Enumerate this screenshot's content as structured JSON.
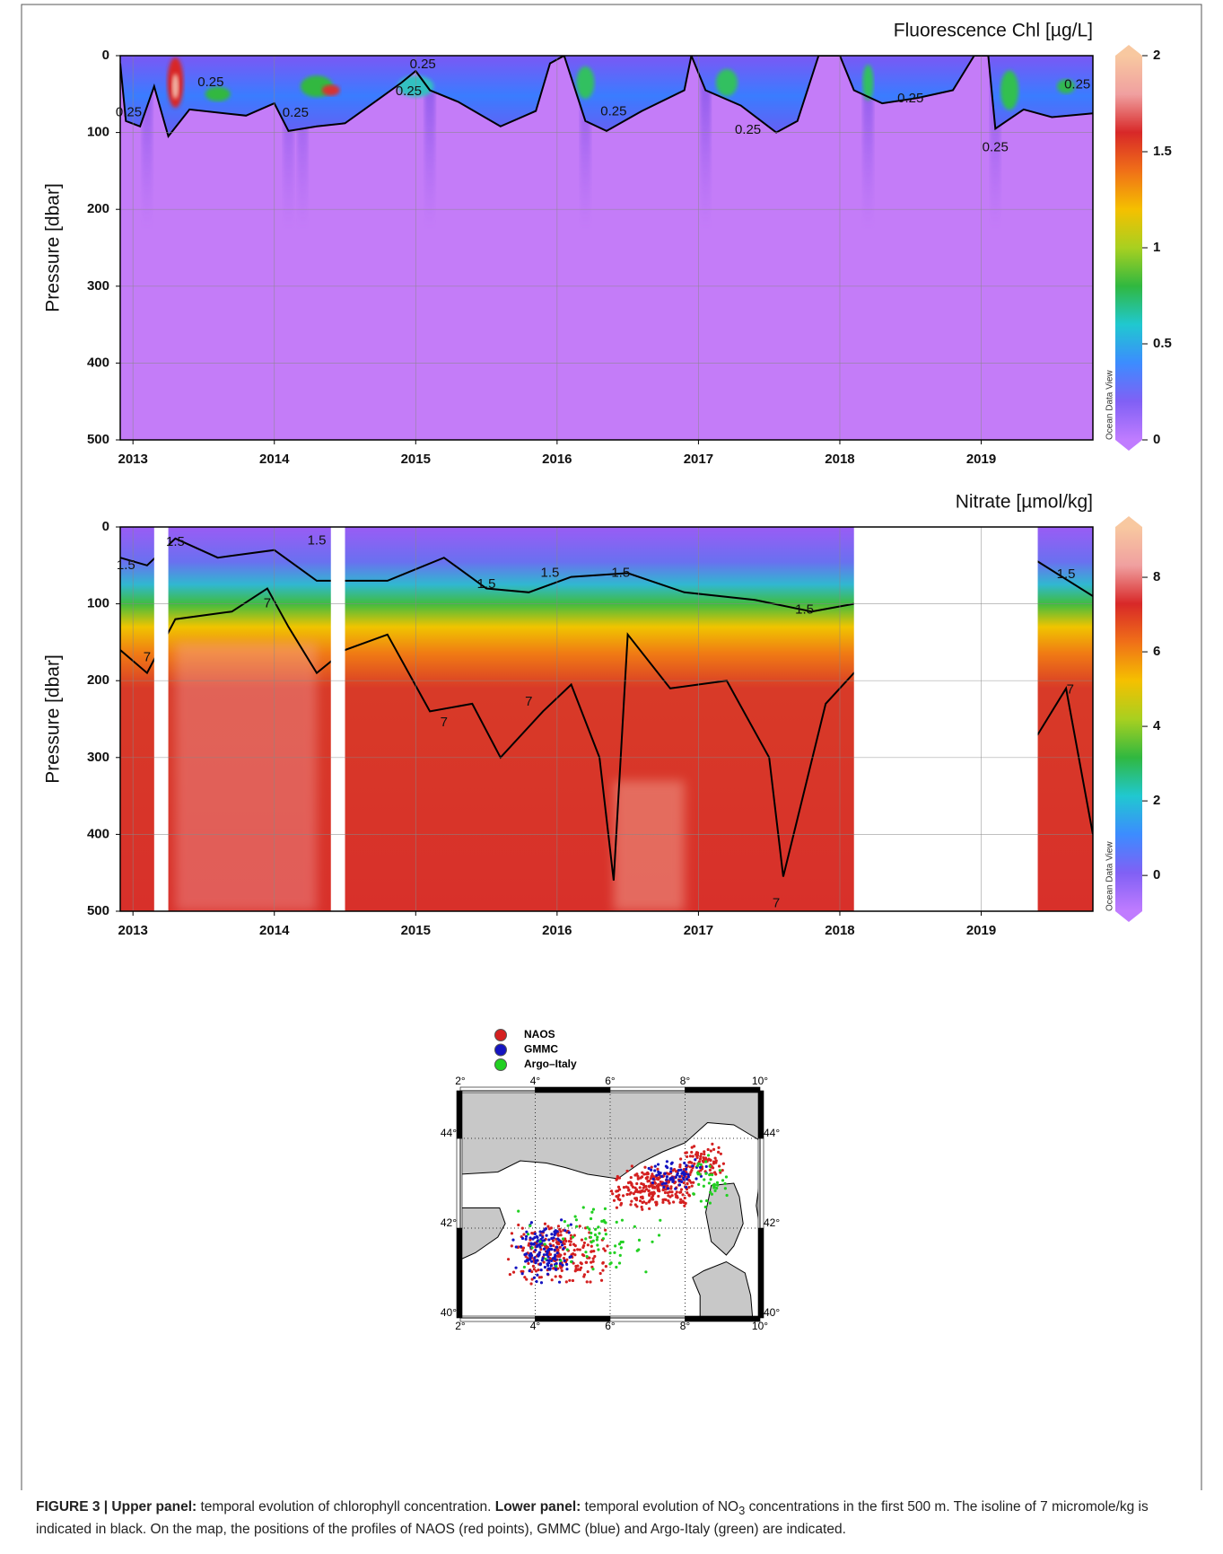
{
  "panels": [
    {
      "title": "Fluorescence Chl [µg/L]",
      "ylabel": "Pressure [dbar]",
      "xlim": [
        2012.91,
        2019.79
      ],
      "xticks": [
        2013,
        2014,
        2015,
        2016,
        2017,
        2018,
        2019
      ],
      "ylim": [
        0,
        500
      ],
      "yticks": [
        0,
        100,
        200,
        300,
        400,
        500
      ],
      "grid": true,
      "colorbar": {
        "lim": [
          0,
          2
        ],
        "ticks": [
          0,
          0.5,
          1,
          1.5,
          2
        ],
        "colors": [
          "#c07cff",
          "#8060f5",
          "#3c8cff",
          "#20c8d0",
          "#30b840",
          "#a8d020",
          "#f5c000",
          "#f07018",
          "#d82828",
          "#f0a0a0",
          "#f8c8a0"
        ]
      },
      "credit": "Ocean Data View",
      "contour_labels": [
        {
          "x": 2012.97,
          "y": 74,
          "value": 0.25
        },
        {
          "x": 2013.55,
          "y": 35,
          "value": 0.25
        },
        {
          "x": 2014.15,
          "y": 75,
          "value": 0.25
        },
        {
          "x": 2015.05,
          "y": 12,
          "value": 0.25
        },
        {
          "x": 2014.95,
          "y": 47,
          "value": 0.25
        },
        {
          "x": 2016.4,
          "y": 73,
          "value": 0.25
        },
        {
          "x": 2017.35,
          "y": 97,
          "value": 0.25
        },
        {
          "x": 2018.5,
          "y": 56,
          "value": 0.25
        },
        {
          "x": 2019.1,
          "y": 120,
          "value": 0.25
        },
        {
          "x": 2019.68,
          "y": 38,
          "value": 0.25
        }
      ]
    },
    {
      "title": "Nitrate [µmol/kg]",
      "ylabel": "Pressure [dbar]",
      "xlim": [
        2012.91,
        2019.79
      ],
      "xticks": [
        2013,
        2014,
        2015,
        2016,
        2017,
        2018,
        2019
      ],
      "ylim": [
        0,
        500
      ],
      "yticks": [
        0,
        100,
        200,
        300,
        400,
        500
      ],
      "grid": true,
      "colorbar": {
        "lim": [
          -0.96,
          9.35
        ],
        "ticks": [
          0,
          2,
          4,
          6,
          8
        ],
        "colors": [
          "#c07cff",
          "#8060f5",
          "#3c8cff",
          "#20c8d0",
          "#30b840",
          "#a8d020",
          "#f5c000",
          "#f07018",
          "#d82828",
          "#f0a0a0",
          "#f8c8a0"
        ]
      },
      "credit": "Ocean Data View",
      "contour_labels": [
        {
          "x": 2012.95,
          "y": 50,
          "value": 1.5
        },
        {
          "x": 2013.3,
          "y": 20,
          "value": 1.5
        },
        {
          "x": 2014.3,
          "y": 18,
          "value": 1.5
        },
        {
          "x": 2015.5,
          "y": 75,
          "value": 1.5
        },
        {
          "x": 2015.95,
          "y": 60,
          "value": 1.5
        },
        {
          "x": 2016.45,
          "y": 60,
          "value": 1.5
        },
        {
          "x": 2017.75,
          "y": 108,
          "value": 1.5
        },
        {
          "x": 2019.6,
          "y": 62,
          "value": 1.5
        },
        {
          "x": 2013.1,
          "y": 170,
          "value": 7
        },
        {
          "x": 2013.95,
          "y": 100,
          "value": 7
        },
        {
          "x": 2015.2,
          "y": 255,
          "value": 7
        },
        {
          "x": 2015.8,
          "y": 228,
          "value": 7
        },
        {
          "x": 2017.55,
          "y": 490,
          "value": 7
        },
        {
          "x": 2019.63,
          "y": 212,
          "value": 7
        }
      ]
    }
  ],
  "map": {
    "legend": [
      {
        "name": "NAOS",
        "color": "#d42020"
      },
      {
        "name": "GMMC",
        "color": "#1414c0"
      },
      {
        "name": "Argo–Italy",
        "color": "#22d022"
      }
    ],
    "xlim": [
      2,
      10
    ],
    "xticks": [
      {
        "value": 2,
        "label": "2°"
      },
      {
        "value": 4,
        "label": "4°"
      },
      {
        "value": 6,
        "label": "6°"
      },
      {
        "value": 8,
        "label": "8°"
      },
      {
        "value": 10,
        "label": "10°"
      }
    ],
    "ylim": [
      40,
      45.06
    ],
    "yticks": [
      {
        "value": 40,
        "label": "40°"
      },
      {
        "value": 42,
        "label": "42°"
      },
      {
        "value": 44,
        "label": "44°"
      }
    ]
  },
  "caption": [
    "FIGURE 3 | Upper panel:",
    " temporal evolution of chlorophyll concentration. ",
    "Lower panel:",
    " temporal evolution of NO",
    "3",
    " concentrations in the first 500 m. The isoline of 7 micromole/kg is indicated in black. On the map, the positions of the profiles of NAOS (red points), GMMC (blue) and Argo-Italy (green) are indicated."
  ]
}
